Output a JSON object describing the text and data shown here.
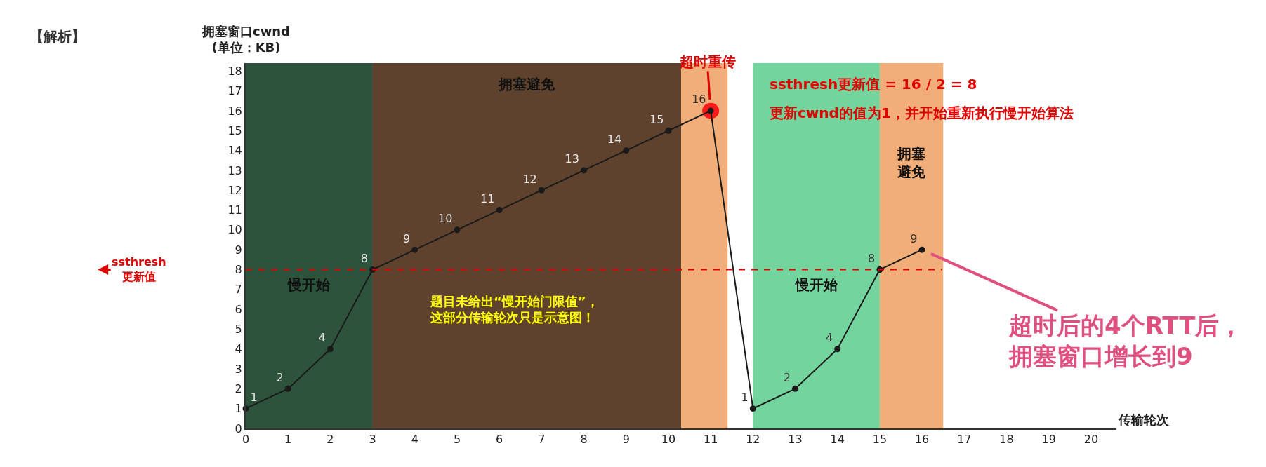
{
  "chart_data": {
    "type": "line",
    "x": [
      0,
      1,
      2,
      3,
      4,
      5,
      6,
      7,
      8,
      9,
      10,
      11,
      12,
      13,
      14,
      15,
      16
    ],
    "series": [
      {
        "color": "#1a1a1a",
        "values": [
          1,
          2,
          4,
          8,
          9,
          10,
          11,
          12,
          13,
          14,
          15,
          16,
          1,
          2,
          4,
          8,
          9
        ]
      }
    ],
    "data_labels": true,
    "marker": "circle",
    "line_style": "solid",
    "xlabel": "传输轮次",
    "ylabel": "拥塞窗口cwnd\n(单位：KB)",
    "xlim": [
      0,
      20.6
    ],
    "xticks": [
      0,
      1,
      2,
      3,
      4,
      5,
      6,
      7,
      8,
      9,
      10,
      11,
      12,
      13,
      14,
      15,
      16,
      17,
      18,
      19,
      20
    ],
    "ylim": [
      0,
      18.4
    ],
    "yticks": [
      0,
      1,
      2,
      3,
      4,
      5,
      6,
      7,
      8,
      9,
      10,
      11,
      12,
      13,
      14,
      15,
      16,
      17,
      18
    ],
    "grid": false,
    "legend": false,
    "ref_lines": [
      {
        "axis": "y",
        "value": 8,
        "label": "ssthresh\n更新值",
        "color": "#e00000",
        "line_style": "dashed"
      }
    ],
    "bands": [
      {
        "axis": "x",
        "from": 0,
        "to": 10.3,
        "color": "#595959"
      },
      {
        "axis": "x",
        "from": 0,
        "to": 3,
        "label": "慢开始",
        "color": "#214d33"
      },
      {
        "axis": "x",
        "from": 3,
        "to": 10.3,
        "label": "拥塞避免",
        "color": "#5a3a22"
      },
      {
        "axis": "x",
        "from": 10.3,
        "to": 11.4,
        "color": "#f0a060"
      },
      {
        "axis": "x",
        "from": 12,
        "to": 15,
        "label": "慢开始",
        "color": "#5ccc8c"
      },
      {
        "axis": "x",
        "from": 15,
        "to": 16.5,
        "label": "拥塞避免",
        "color": "#f0a060"
      }
    ],
    "annotations": [
      "【解析】",
      {
        "text": "超时重传",
        "x": 11,
        "y": 16
      },
      "ssthresh更新值 = 16 / 2 = 8",
      "更新cwnd的值为1，并开始重新执行慢开始算法",
      "题目未给出“慢开始门限值”，这部分传输轮次只是示意图！",
      {
        "text": "超时后的4个RTT后，拥塞窗口增长到9",
        "x": 16,
        "y": 9
      }
    ]
  }
}
